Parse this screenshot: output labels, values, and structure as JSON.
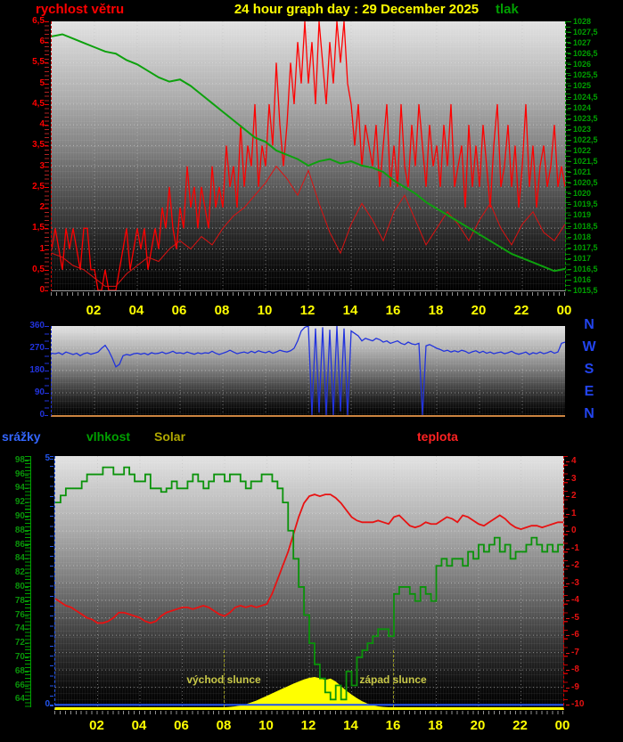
{
  "title": {
    "left": "rychlost větru",
    "center": "24 hour graph day : 29 December 2025",
    "right": "tlak"
  },
  "labels_row": {
    "srazky": "srážky",
    "vlhkost": "vlhkost",
    "solar": "Solar",
    "teplota": "teplota"
  },
  "sun": {
    "sunrise_label": "východ slunce",
    "sunset_label": "západ slunce",
    "sunrise_hour": 8,
    "sunset_hour": 16
  },
  "x_ticks": [
    "02",
    "04",
    "06",
    "08",
    "10",
    "12",
    "14",
    "16",
    "18",
    "20",
    "22",
    "00"
  ],
  "colors": {
    "wind": "#ff0000",
    "pressure": "#0da10d",
    "direction": "#2233dd",
    "humidity": "#0a930a",
    "temperature": "#e81212",
    "solar_fill": "#ffff00",
    "precip": "#2255ee",
    "title_yellow": "#ffff00",
    "sun_text": "#c8c848",
    "mid_baseline": "#cc8440"
  },
  "chart_data": [
    {
      "type": "line",
      "title": "wind speed and pressure, 24 h",
      "x_range": [
        0,
        24
      ],
      "grid": {
        "v_hours": [
          2,
          4,
          6,
          8,
          10,
          12,
          14,
          16,
          18,
          20,
          22
        ],
        "h": {
          "axis": "left",
          "values": [
            0.5,
            1,
            1.5,
            2,
            2.5,
            3,
            3.5,
            4,
            4.5,
            5,
            5.5,
            6
          ]
        }
      },
      "axes": {
        "left": {
          "range": [
            0,
            6.5
          ],
          "color": "#ff0000",
          "ticks": [
            "6,5",
            "6",
            "5,5",
            "5",
            "4,5",
            "4",
            "3,5",
            "3",
            "2,5",
            "2",
            "1,5",
            "1",
            "0,5",
            "0"
          ]
        },
        "right": {
          "range": [
            1015.5,
            1028
          ],
          "color": "#00a000",
          "ticks": [
            "1028",
            "1027,5",
            "1027",
            "1026,5",
            "1026",
            "1025,5",
            "1025",
            "1024,5",
            "1024",
            "1023,5",
            "1023",
            "1022,5",
            "1022",
            "1021,5",
            "1021",
            "1020,5",
            "1020",
            "1019,5",
            "1019",
            "1018,5",
            "1018",
            "1017,5",
            "1017",
            "1016,5",
            "1016",
            "1015,5"
          ]
        }
      },
      "series": [
        {
          "name": "wind_gust",
          "axis": "left",
          "color": "#ff0000",
          "width": 1.3,
          "values": [
            1,
            1.5,
            1,
            0.5,
            1.5,
            1,
            1.5,
            1,
            0.5,
            1.5,
            1.5,
            0.5,
            0.5,
            0,
            0,
            0.5,
            0,
            0,
            0,
            0.5,
            1,
            1.5,
            0.5,
            1,
            1.5,
            1,
            1.5,
            0.5,
            1,
            1.5,
            1,
            2,
            1.5,
            2.5,
            1.5,
            1,
            2,
            1.5,
            3,
            2,
            2.5,
            1.5,
            2.5,
            2,
            1.5,
            3,
            2,
            2.5,
            2,
            3.5,
            2.5,
            3,
            2,
            4,
            2.5,
            3.5,
            3,
            4.5,
            2.5,
            3.5,
            3,
            4.5,
            3.5,
            5.5,
            4,
            3,
            4,
            5.5,
            4.5,
            6,
            5,
            6.5,
            5,
            6,
            4.5,
            6.5,
            5.5,
            4.5,
            6,
            5,
            6.5,
            5.5,
            6.5,
            5,
            4.5,
            3.5,
            4.5,
            3,
            4,
            3.5,
            3,
            4,
            2.5,
            3.5,
            4.5,
            2.5,
            3.5,
            2.5,
            4.5,
            3,
            2.5,
            4,
            3,
            4.5,
            3.5,
            2.5,
            4,
            3,
            3.5,
            2.5,
            4,
            3,
            4.5,
            2.5,
            3,
            3.5,
            2,
            4,
            2.5,
            3.5,
            2.5,
            4,
            3,
            2,
            3.5,
            4.5,
            2.5,
            3,
            4,
            2.5,
            3.5,
            2,
            3,
            4.5,
            2.5,
            3.5,
            2,
            3,
            3.5,
            2.5,
            3,
            4,
            2.5,
            3,
            2.5
          ]
        },
        {
          "name": "wind_avg",
          "axis": "left",
          "color": "#dd1111",
          "width": 1,
          "values": [
            0.9,
            0.8,
            0.6,
            0.5,
            0.3,
            0.1,
            0.1,
            0.4,
            0.6,
            0.8,
            0.7,
            1,
            1.2,
            1,
            1.3,
            1.1,
            1.5,
            1.8,
            2,
            2.3,
            2.6,
            3,
            2.7,
            2.3,
            2.9,
            2.1,
            1.4,
            0.9,
            1.6,
            2.1,
            1.7,
            1.2,
            1.9,
            2.3,
            1.7,
            1.1,
            1.5,
            1.9,
            1.6,
            1.2,
            1.7,
            2.1,
            1.5,
            1.1,
            1.6,
            1.9,
            1.4,
            1.2,
            1.6
          ]
        },
        {
          "name": "pressure",
          "axis": "right",
          "color": "#0da10d",
          "width": 2,
          "values": [
            1027.3,
            1027.4,
            1027.2,
            1027,
            1026.8,
            1026.6,
            1026.5,
            1026.2,
            1026,
            1025.7,
            1025.4,
            1025.2,
            1025.3,
            1025,
            1024.6,
            1024.2,
            1023.8,
            1023.4,
            1023,
            1022.6,
            1022.4,
            1022,
            1021.8,
            1021.6,
            1021.3,
            1021.5,
            1021.6,
            1021.4,
            1021.5,
            1021.3,
            1021.2,
            1021,
            1020.6,
            1020.3,
            1020,
            1019.6,
            1019.3,
            1019,
            1018.7,
            1018.4,
            1018.1,
            1017.8,
            1017.5,
            1017.2,
            1017,
            1016.8,
            1016.6,
            1016.4,
            1016.5
          ]
        }
      ]
    },
    {
      "type": "line",
      "title": "wind direction, 24 h",
      "x_range": [
        0,
        24
      ],
      "grid": {
        "v_hours": [
          2,
          4,
          6,
          8,
          10,
          12,
          14,
          16,
          18,
          20,
          22
        ],
        "h": {
          "axis": "left",
          "values": [
            90,
            180,
            270
          ]
        }
      },
      "axes": {
        "left": {
          "range": [
            0,
            360
          ],
          "color": "#2233dd",
          "ticks": [
            "360",
            "270",
            "180",
            "90",
            "0"
          ]
        }
      },
      "compass": [
        "N",
        "W",
        "S",
        "E",
        "N"
      ],
      "series": [
        {
          "name": "direction",
          "axis": "left",
          "color": "#2233dd",
          "width": 1.3,
          "values": [
            250,
            248,
            252,
            245,
            255,
            250,
            245,
            250,
            240,
            248,
            252,
            246,
            250,
            255,
            270,
            282,
            260,
            230,
            195,
            205,
            240,
            245,
            242,
            248,
            250,
            246,
            250,
            244,
            252,
            248,
            250,
            255,
            248,
            252,
            258,
            250,
            252,
            248,
            255,
            250,
            246,
            252,
            248,
            252,
            250,
            258,
            250,
            245,
            250,
            255,
            262,
            255,
            248,
            252,
            255,
            250,
            258,
            252,
            260,
            255,
            252,
            258,
            250,
            255,
            262,
            258,
            255,
            260,
            270,
            300,
            340,
            355,
            360,
            0,
            350,
            10,
            355,
            0,
            345,
            0,
            360,
            15,
            350,
            0,
            340,
            330,
            320,
            300,
            310,
            305,
            300,
            310,
            305,
            295,
            300,
            290,
            295,
            300,
            290,
            285,
            295,
            288,
            285,
            290,
            0,
            280,
            285,
            278,
            270,
            265,
            258,
            262,
            255,
            260,
            255,
            262,
            258,
            250,
            256,
            260,
            252,
            258,
            250,
            255,
            248,
            252,
            255,
            248,
            252,
            258,
            250,
            246,
            250,
            255,
            245,
            252,
            248,
            255,
            248,
            252,
            258,
            250,
            255,
            290,
            295
          ]
        }
      ]
    },
    {
      "type": "line",
      "title": "humidity, solar, temperature, precipitation, 24 h",
      "x_range": [
        0,
        24
      ],
      "grid": {
        "v_hours": [
          2,
          4,
          6,
          8,
          10,
          12,
          14,
          16,
          18,
          20,
          22
        ],
        "h": {
          "axis": "temp",
          "values": [
            -9,
            -8,
            -7,
            -6,
            -5,
            -4,
            -3,
            -2,
            -1,
            0,
            1,
            2,
            3
          ]
        }
      },
      "axes": {
        "hum": {
          "range": [
            62.9,
            98.6
          ],
          "color": "#0a930a",
          "ticks": [
            "98",
            "96",
            "94",
            "92",
            "90",
            "88",
            "86",
            "84",
            "82",
            "80",
            "78",
            "76",
            "74",
            "72",
            "70",
            "68",
            "66",
            "64"
          ]
        },
        "precip": {
          "range": [
            -0.05,
            5.05
          ],
          "color": "#2255ee",
          "ticks": [
            "5",
            "0"
          ]
        },
        "temp": {
          "range": [
            -10.15,
            4.31
          ],
          "color": "#e81212",
          "ticks": [
            "4",
            "3",
            "2",
            "1",
            "0",
            "-1",
            "-2",
            "-3",
            "-4",
            "-5",
            "-6",
            "-7",
            "-8",
            "-9",
            "-10"
          ]
        },
        "solar": {
          "range": [
            0,
            830
          ]
        }
      },
      "series": [
        {
          "name": "solar",
          "axis": "solar",
          "color": "#ffff00",
          "fill": true,
          "values": [
            0,
            0,
            0,
            0,
            0,
            0,
            0,
            0,
            0,
            0,
            0,
            0,
            0,
            0,
            0,
            0,
            0,
            0,
            0,
            0,
            0,
            0,
            0,
            0,
            0,
            0,
            0,
            0,
            0,
            0,
            0,
            0,
            0,
            1,
            3,
            6,
            10,
            16,
            22,
            30,
            38,
            46,
            54,
            62,
            70,
            78,
            85,
            92,
            97,
            100,
            96,
            90,
            95,
            85,
            70,
            55,
            42,
            30,
            20,
            12,
            7,
            3,
            1,
            0,
            0,
            0,
            0,
            0,
            0,
            0,
            0,
            0,
            0,
            0,
            0,
            0,
            0,
            0,
            0,
            0,
            0,
            0,
            0,
            0,
            0,
            0,
            0,
            0,
            0,
            0,
            0,
            0,
            0,
            0,
            0,
            0,
            0
          ]
        },
        {
          "name": "precipitation",
          "axis": "precip",
          "color": "#2255ee",
          "width": 2,
          "values": [
            0,
            0
          ]
        },
        {
          "name": "temperature",
          "axis": "temp",
          "color": "#e81212",
          "width": 1.8,
          "values": [
            -3.9,
            -4.1,
            -4.3,
            -4.4,
            -4.6,
            -4.8,
            -5,
            -5.1,
            -5.3,
            -5.3,
            -5.2,
            -5,
            -4.7,
            -4.7,
            -4.8,
            -4.9,
            -5,
            -5.2,
            -5.3,
            -5.2,
            -4.9,
            -4.7,
            -4.6,
            -4.5,
            -4.4,
            -4.4,
            -4.5,
            -4.4,
            -4.3,
            -4.4,
            -4.6,
            -4.8,
            -4.9,
            -4.7,
            -4.4,
            -4.3,
            -4.4,
            -4.3,
            -4.4,
            -4.3,
            -4.2,
            -3.6,
            -2.8,
            -2,
            -1.2,
            -0.2,
            0.8,
            1.6,
            2,
            2.1,
            2,
            2.1,
            2.1,
            1.9,
            1.6,
            1.2,
            0.8,
            0.6,
            0.5,
            0.5,
            0.5,
            0.6,
            0.5,
            0.4,
            0.8,
            0.9,
            0.6,
            0.3,
            0.2,
            0.3,
            0.5,
            0.4,
            0.4,
            0.6,
            0.8,
            0.7,
            0.5,
            0.9,
            0.8,
            0.6,
            0.4,
            0.3,
            0.5,
            0.7,
            0.9,
            0.7,
            0.4,
            0.2,
            0.1,
            0.2,
            0.3,
            0.3,
            0.2,
            0.3,
            0.4,
            0.5,
            0.5
          ]
        },
        {
          "name": "humidity",
          "axis": "hum",
          "color": "#0a930a",
          "width": 1.8,
          "step": true,
          "values": [
            92,
            93,
            94,
            94,
            94,
            95,
            96,
            96,
            96,
            97,
            97,
            96,
            96,
            97,
            96,
            95,
            95,
            96,
            94,
            94,
            93.5,
            94,
            95,
            94,
            94,
            95,
            96,
            95,
            94,
            95,
            96,
            96,
            95,
            96,
            96,
            95,
            94,
            95,
            95,
            96,
            96,
            95,
            94,
            92,
            88,
            84,
            80,
            76,
            72,
            69,
            67,
            65,
            64,
            66,
            64,
            68,
            66,
            70,
            71,
            72,
            73,
            74,
            74,
            73,
            79,
            80,
            80,
            79,
            78,
            80,
            79,
            78,
            83,
            84,
            83,
            84,
            84,
            83,
            85,
            84,
            86,
            85,
            86,
            87,
            85,
            86,
            84,
            85,
            85,
            86,
            87,
            86,
            85,
            86,
            85,
            86,
            86
          ]
        }
      ]
    }
  ]
}
